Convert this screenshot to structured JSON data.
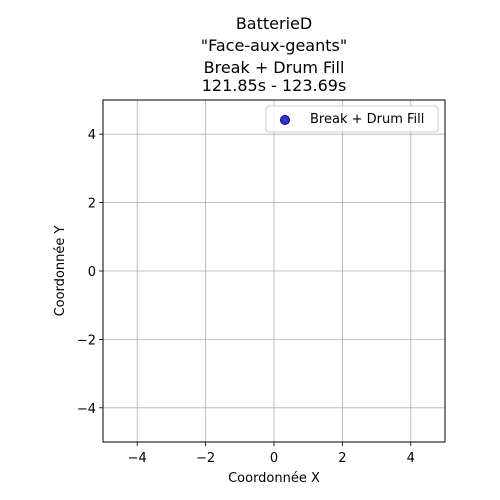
{
  "chart_data": {
    "type": "scatter",
    "title": [
      "BatterieD",
      "\"Face-aux-geants\"",
      "Break + Drum Fill",
      "121.85s - 123.69s"
    ],
    "xlabel": "Coordonnée X",
    "ylabel": "Coordonnée Y",
    "xlim": [
      -5,
      5
    ],
    "ylim": [
      -5,
      5
    ],
    "xticks": [
      -4,
      -2,
      0,
      2,
      4
    ],
    "yticks": [
      -4,
      -2,
      0,
      2,
      4
    ],
    "xtick_labels": [
      "−4",
      "−2",
      "0",
      "2",
      "4"
    ],
    "ytick_labels": [
      "−4",
      "−2",
      "0",
      "2",
      "4"
    ],
    "grid": true,
    "legend_position": "top-right",
    "series": [
      {
        "name": "Break + Drum Fill",
        "color": "#3333cc",
        "edge_color": "#000080",
        "points": []
      }
    ]
  }
}
